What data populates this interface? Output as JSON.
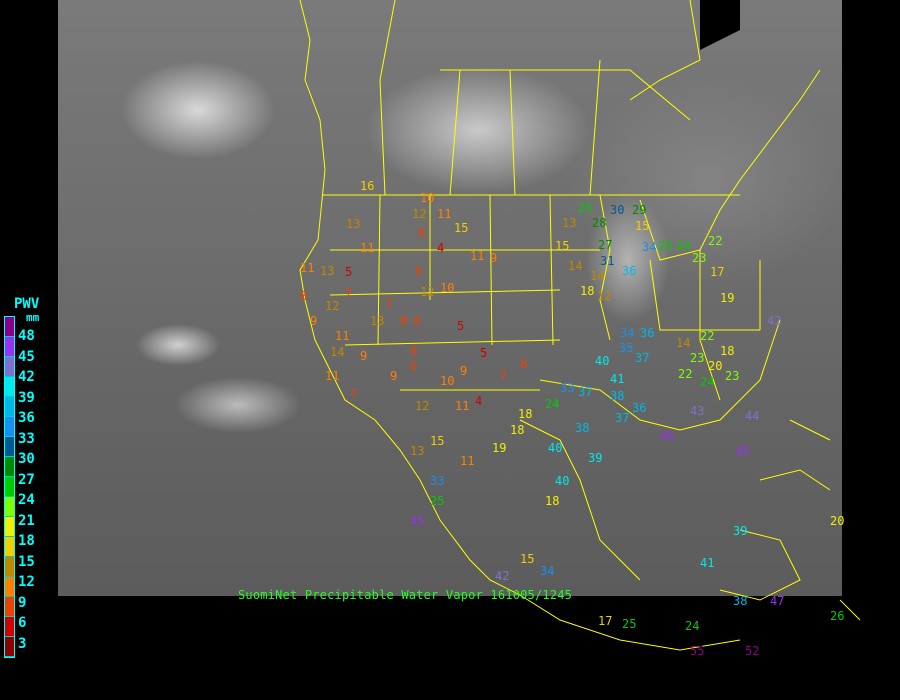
{
  "caption": "SuomiNet Precipitable Water Vapor 161005/1245",
  "legend": {
    "title": "PWV",
    "unit": "mm",
    "labels": [
      "48",
      "45",
      "42",
      "39",
      "36",
      "33",
      "30",
      "27",
      "24",
      "21",
      "18",
      "15",
      "12",
      "9",
      "6",
      "3"
    ],
    "colors": [
      "#8b008b",
      "#9a30f0",
      "#8070d0",
      "#00eaea",
      "#00b8e8",
      "#1890f0",
      "#005a90",
      "#008a00",
      "#00cc00",
      "#80ff00",
      "#f0f000",
      "#f0d000",
      "#c08800",
      "#ff8000",
      "#f04000",
      "#d00000",
      "#900000"
    ]
  },
  "boundary_color": "#ffff00",
  "stations": [
    "16",
    "10",
    "12",
    "11",
    "15",
    "13",
    "11",
    "8",
    "4",
    "11",
    "9",
    "6",
    "7",
    "12",
    "5",
    "10",
    "11",
    "13",
    "8",
    "12",
    "9",
    "5",
    "7",
    "8",
    "6",
    "11",
    "9",
    "13",
    "14",
    "8",
    "5",
    "6",
    "9",
    "8",
    "7",
    "4",
    "11",
    "7",
    "15",
    "13",
    "11",
    "9",
    "12",
    "10",
    "11",
    "18",
    "18",
    "19",
    "24",
    "33",
    "37",
    "38",
    "40",
    "41",
    "38",
    "36",
    "37",
    "39",
    "40",
    "37",
    "34",
    "35",
    "36",
    "25",
    "30",
    "29",
    "28",
    "27",
    "31",
    "34",
    "36",
    "25",
    "24",
    "23",
    "22",
    "17",
    "19",
    "15",
    "14",
    "14",
    "18",
    "15",
    "13",
    "12",
    "14",
    "23",
    "22",
    "18",
    "20",
    "23",
    "24",
    "22",
    "40",
    "42",
    "43",
    "44",
    "45",
    "46",
    "41",
    "39",
    "38",
    "47",
    "52",
    "55",
    "20",
    "26",
    "17",
    "25",
    "24",
    "25",
    "33",
    "34",
    "15",
    "18",
    "42",
    "45"
  ]
}
